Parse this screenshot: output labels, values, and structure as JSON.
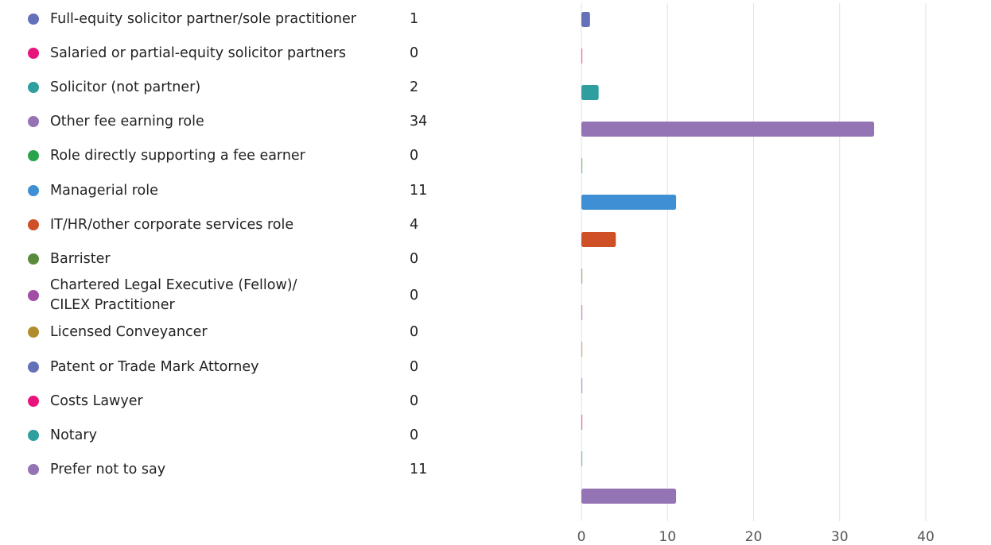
{
  "chart_data": {
    "type": "bar",
    "orientation": "horizontal",
    "categories": [
      "Full-equity solicitor partner/sole practitioner",
      "Salaried or partial-equity solicitor partners",
      "Solicitor (not partner)",
      "Other fee earning role",
      "Role directly supporting a fee earner",
      "Managerial role",
      "IT/HR/other corporate services role",
      "Barrister",
      "Chartered Legal Executive (Fellow)/ CILEX Practitioner",
      "Licensed Conveyancer",
      "Patent or Trade Mark Attorney",
      "Costs Lawyer",
      "Notary",
      "Prefer not to say"
    ],
    "values": [
      1,
      0,
      2,
      34,
      0,
      11,
      4,
      0,
      0,
      0,
      0,
      0,
      0,
      11
    ],
    "colors": [
      "#6470b8",
      "#e8147d",
      "#2e9e9e",
      "#9574b5",
      "#2aa34a",
      "#3e8fd3",
      "#cf4f26",
      "#5a8a3c",
      "#a04fa5",
      "#b08c2c",
      "#6470b8",
      "#e8147d",
      "#2e9e9e",
      "#9574b5"
    ],
    "xlim": [
      0,
      40
    ],
    "xticks": [
      0,
      10,
      20,
      30,
      40
    ],
    "grid": true,
    "title": "",
    "xlabel": "",
    "ylabel": ""
  }
}
